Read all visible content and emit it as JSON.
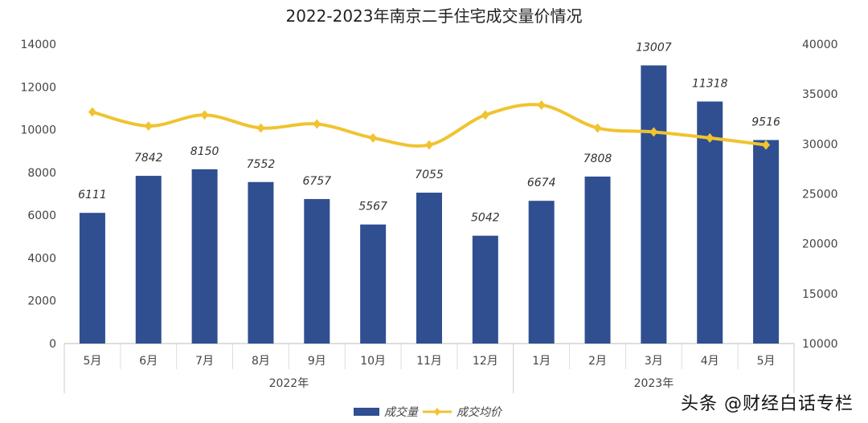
{
  "chart_data": {
    "type": "bar+line",
    "title": "2022-2023年南京二手住宅成交量价情况",
    "categories": [
      "5月",
      "6月",
      "7月",
      "8月",
      "9月",
      "10月",
      "11月",
      "12月",
      "1月",
      "2月",
      "3月",
      "4月",
      "5月"
    ],
    "groups": [
      {
        "label": "2022年",
        "span": 8
      },
      {
        "label": "2023年",
        "span": 5
      }
    ],
    "series": [
      {
        "name": "成交量",
        "type": "bar",
        "axis": "left",
        "color": "#2f4f91",
        "values": [
          6111,
          7842,
          8150,
          7552,
          6757,
          5567,
          7055,
          5042,
          6674,
          7808,
          13007,
          11318,
          9516
        ]
      },
      {
        "name": "成交均价",
        "type": "line",
        "axis": "right",
        "color": "#f0c330",
        "values": [
          33200,
          31800,
          32900,
          31600,
          32000,
          30600,
          29900,
          32900,
          33900,
          31600,
          31200,
          30600,
          29900
        ]
      }
    ],
    "left_axis": {
      "ylim": [
        0,
        14000
      ],
      "ticks": [
        0,
        2000,
        4000,
        6000,
        8000,
        10000,
        12000,
        14000
      ]
    },
    "right_axis": {
      "ylim": [
        10000,
        40000
      ],
      "ticks": [
        10000,
        15000,
        20000,
        25000,
        30000,
        35000,
        40000
      ]
    },
    "legend_position": "bottom",
    "grid": false
  },
  "watermark": "头条 @财经白话专栏"
}
